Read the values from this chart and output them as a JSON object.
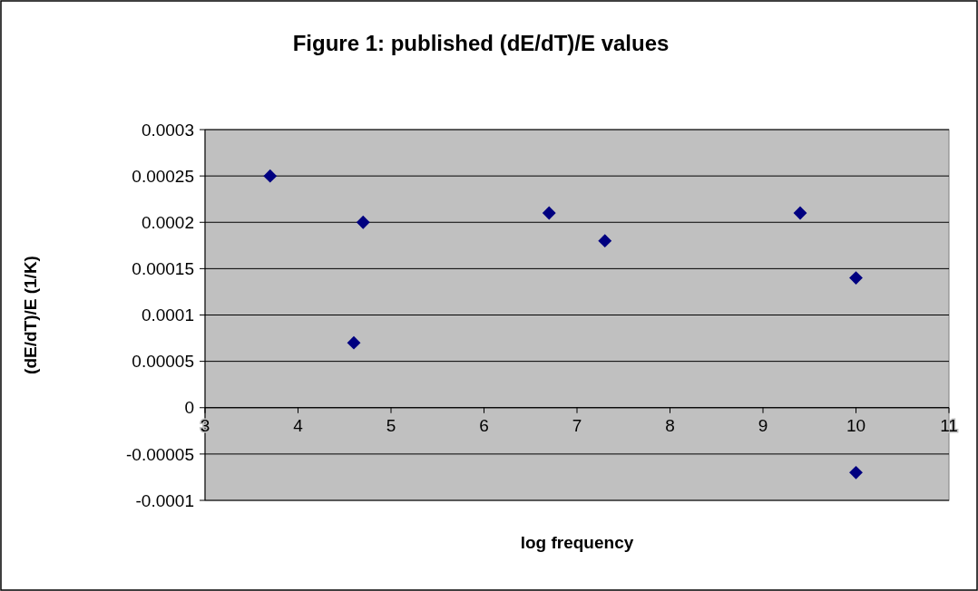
{
  "chart_data": {
    "type": "scatter",
    "title": "Figure 1: published (dE/dT)/E values",
    "xlabel": "log frequency",
    "ylabel": "(dE/dT)/E (1/K)",
    "x": [
      3.7,
      4.6,
      4.7,
      6.7,
      7.3,
      9.4,
      10,
      10
    ],
    "values": [
      0.00025,
      7e-05,
      0.0002,
      0.00021,
      0.00018,
      0.00021,
      0.00014,
      -7e-05
    ],
    "color": "#000080",
    "marker": "diamond",
    "grid": "y",
    "xlim": [
      3,
      11
    ],
    "xticks": [
      3,
      4,
      5,
      6,
      7,
      8,
      9,
      10,
      11
    ],
    "ylim": [
      -0.0001,
      0.0003
    ],
    "yticks": [
      -0.0001,
      {
        "value": -5e-05,
        "label": "-0.00005"
      },
      0,
      {
        "value": 5e-05,
        "label": "0.00005"
      },
      0.0001,
      0.00015,
      0.0002,
      0.00025,
      0.0003
    ]
  }
}
